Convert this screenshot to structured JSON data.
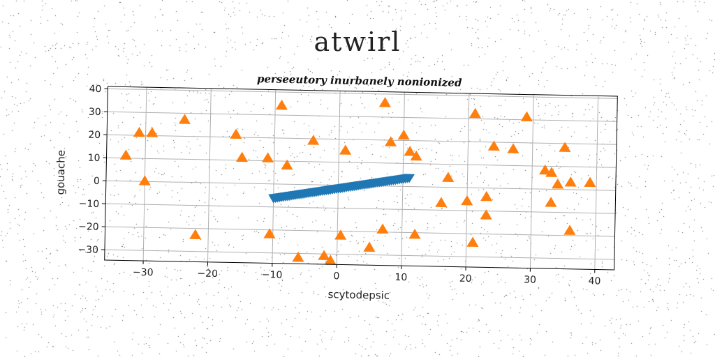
{
  "page": {
    "heading": "atwirl"
  },
  "colors": {
    "background": "#ffffff",
    "grid": "#b0b0b0",
    "axes": "#000000",
    "noise": "#555555"
  },
  "chart_data": {
    "type": "scatter",
    "title": "perseeutory inurbanely nonionized",
    "xlabel": "scytodepsic",
    "ylabel": "gouache",
    "xlim": [
      -36,
      43
    ],
    "ylim": [
      -34.5,
      41
    ],
    "xticks": [
      -30,
      -20,
      -10,
      0,
      10,
      20,
      30,
      40
    ],
    "yticks": [
      -30,
      -20,
      -10,
      0,
      10,
      20,
      30,
      40
    ],
    "grid": true,
    "series": [
      {
        "marker": "triangle-down",
        "color": "#1f77b4",
        "x_range": [
          -10,
          11
        ],
        "y_at_start": -6,
        "y_at_end": 4,
        "count": 70
      },
      {
        "marker": "triangle-up",
        "color": "#ff7f0e",
        "points": [
          [
            -33,
            11
          ],
          [
            -31,
            21
          ],
          [
            -29,
            21
          ],
          [
            -30,
            0
          ],
          [
            -24,
            27
          ],
          [
            -22,
            -23
          ],
          [
            -16,
            21
          ],
          [
            -15,
            11
          ],
          [
            -11,
            11
          ],
          [
            -10.5,
            -22
          ],
          [
            -9,
            34
          ],
          [
            -8,
            8
          ],
          [
            -6,
            -32
          ],
          [
            -4,
            19
          ],
          [
            -2,
            -31
          ],
          [
            -1,
            -33
          ],
          [
            0.5,
            -22
          ],
          [
            1,
            15
          ],
          [
            5,
            -27
          ],
          [
            7,
            36
          ],
          [
            7,
            -19
          ],
          [
            8,
            19
          ],
          [
            10,
            22
          ],
          [
            11,
            15
          ],
          [
            12,
            13
          ],
          [
            12,
            -21
          ],
          [
            16,
            -7
          ],
          [
            17,
            4
          ],
          [
            20,
            -6
          ],
          [
            21,
            32
          ],
          [
            21,
            -24
          ],
          [
            23,
            -4
          ],
          [
            23,
            -12
          ],
          [
            24,
            18
          ],
          [
            27,
            17
          ],
          [
            29,
            31
          ],
          [
            32,
            8
          ],
          [
            33,
            7
          ],
          [
            33,
            -6
          ],
          [
            34,
            2
          ],
          [
            35,
            18
          ],
          [
            36,
            3
          ],
          [
            36,
            -18
          ],
          [
            39,
            3
          ]
        ]
      }
    ]
  }
}
